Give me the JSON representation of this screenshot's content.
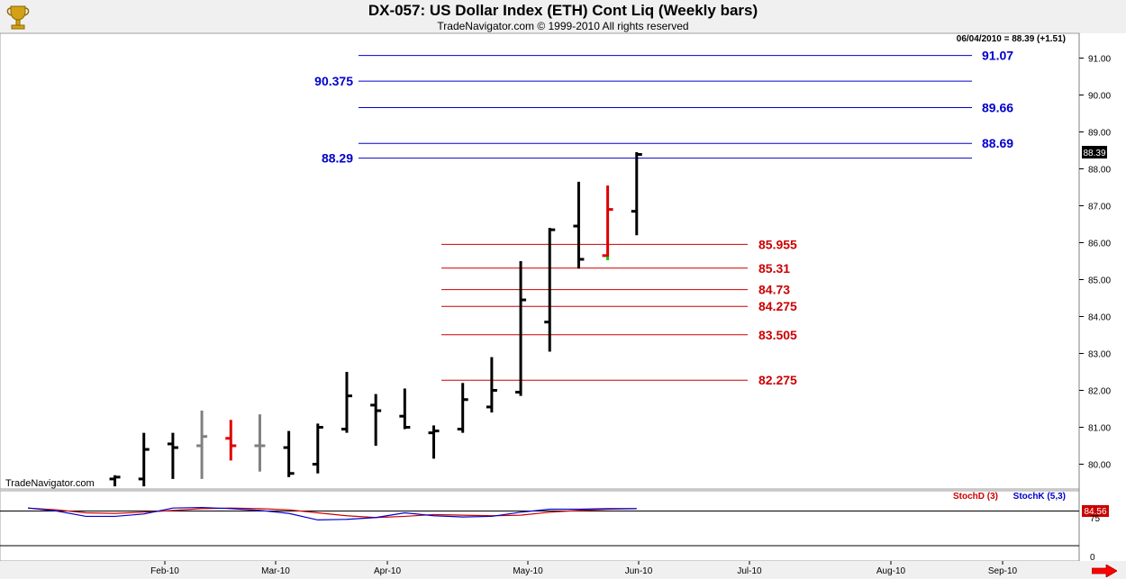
{
  "header": {
    "title": "DX-057:  US Dollar Index (ETH) Cont Liq  (Weekly bars)",
    "copyright": "TradeNavigator.com © 1999-2010 All rights reserved",
    "logo_icon": "trophy-icon"
  },
  "main_panel": {
    "last_price_readout": "06/04/2010 = 88.39 (+1.51)",
    "watermark": "TradeNavigator.com",
    "current_price_tag": "88.39",
    "y_ticks": [
      "80.00",
      "81.00",
      "82.00",
      "83.00",
      "84.00",
      "85.00",
      "86.00",
      "87.00",
      "88.00",
      "89.00",
      "90.00",
      "91.00"
    ]
  },
  "lower_panel": {
    "legend_d": "StochD (3)",
    "legend_k": "StochK (5,3)",
    "value_tag": "84.56",
    "y_ticks": [
      "75",
      "0"
    ]
  },
  "x_axis": {
    "labels": [
      "Feb-10",
      "Mar-10",
      "Apr-10",
      "May-10",
      "Jun-10",
      "Jul-10",
      "Aug-10",
      "Sep-10"
    ]
  },
  "colors": {
    "blue_levels": "#0000cc",
    "red_levels": "#cc0000",
    "bar_normal": "#000000",
    "bar_inside": "#808080",
    "bar_highlight": "#dd0000",
    "stoch_d": "#cc0000",
    "stoch_k": "#0000cc",
    "nav_arrow": "#ff0000"
  },
  "chart_data": [
    {
      "type": "ohlc",
      "ylim": [
        79.4,
        91.4
      ],
      "grid": false,
      "legend": "",
      "x": [
        "Jan-04",
        "Jan-11",
        "Jan-18",
        "Jan-25",
        "Feb-01",
        "Feb-08",
        "Feb-15",
        "Feb-22",
        "Mar-01",
        "Mar-08",
        "Mar-15",
        "Mar-22",
        "Mar-29",
        "Apr-05",
        "Apr-12",
        "Apr-19",
        "Apr-26",
        "May-03",
        "May-10",
        "May-17",
        "May-24",
        "May-31"
      ],
      "bars": [
        {
          "open": 79.6,
          "high": 79.7,
          "low": 79.4,
          "close": 79.65,
          "color": "black"
        },
        {
          "open": 79.6,
          "high": 80.85,
          "low": 79.4,
          "close": 80.4,
          "color": "black"
        },
        {
          "open": 80.55,
          "high": 80.85,
          "low": 79.6,
          "close": 80.45,
          "color": "black"
        },
        {
          "open": 80.5,
          "high": 81.45,
          "low": 79.6,
          "close": 80.75,
          "color": "gray"
        },
        {
          "open": 80.7,
          "high": 81.2,
          "low": 80.1,
          "close": 80.5,
          "color": "red"
        },
        {
          "open": 80.5,
          "high": 81.35,
          "low": 79.8,
          "close": 80.5,
          "color": "gray"
        },
        {
          "open": 80.45,
          "high": 80.9,
          "low": 79.65,
          "close": 79.75,
          "color": "black"
        },
        {
          "open": 80.0,
          "high": 81.1,
          "low": 79.75,
          "close": 81.0,
          "color": "black"
        },
        {
          "open": 80.95,
          "high": 82.5,
          "low": 80.85,
          "close": 81.85,
          "color": "black"
        },
        {
          "open": 81.6,
          "high": 81.9,
          "low": 80.5,
          "close": 81.45,
          "color": "black"
        },
        {
          "open": 81.3,
          "high": 82.05,
          "low": 80.95,
          "close": 81.0,
          "color": "black"
        },
        {
          "open": 80.85,
          "high": 81.05,
          "low": 80.15,
          "close": 80.9,
          "color": "black"
        },
        {
          "open": 80.95,
          "high": 82.2,
          "low": 80.85,
          "close": 81.75,
          "color": "black"
        },
        {
          "open": 81.55,
          "high": 82.9,
          "low": 81.4,
          "close": 82.0,
          "color": "black"
        },
        {
          "open": 81.95,
          "high": 85.5,
          "low": 81.85,
          "close": 84.45,
          "color": "black"
        },
        {
          "open": 83.85,
          "high": 86.4,
          "low": 83.05,
          "close": 86.35,
          "color": "black"
        },
        {
          "open": 86.45,
          "high": 87.65,
          "low": 85.3,
          "close": 85.55,
          "color": "black"
        },
        {
          "open": 85.65,
          "high": 87.55,
          "low": 85.6,
          "close": 86.9,
          "color": "red"
        },
        {
          "open": 86.85,
          "high": 88.45,
          "low": 86.2,
          "close": 88.39,
          "color": "black"
        }
      ],
      "bars_start_index": 3,
      "horizontal_levels": [
        {
          "value": 91.07,
          "label": "91.07",
          "color": "blue"
        },
        {
          "value": 90.375,
          "label": "90.375",
          "color": "blue"
        },
        {
          "value": 89.66,
          "label": "89.66",
          "color": "blue"
        },
        {
          "value": 88.69,
          "label": "88.69",
          "color": "blue"
        },
        {
          "value": 88.29,
          "label": "88.29",
          "color": "blue"
        },
        {
          "value": 85.955,
          "label": "85.955",
          "color": "red"
        },
        {
          "value": 85.31,
          "label": "85.31",
          "color": "red"
        },
        {
          "value": 84.73,
          "label": "84.73",
          "color": "red"
        },
        {
          "value": 84.275,
          "label": "84.275",
          "color": "red"
        },
        {
          "value": 83.505,
          "label": "83.505",
          "color": "red"
        },
        {
          "value": 82.275,
          "label": "82.275",
          "color": "red"
        }
      ]
    },
    {
      "type": "line",
      "ylim": [
        0,
        100
      ],
      "series": [
        {
          "name": "StochD (3)",
          "values": [
            80,
            77,
            72,
            71,
            73,
            76,
            79,
            80,
            79,
            77,
            72,
            67,
            64,
            66,
            69,
            68,
            67,
            68,
            73,
            76,
            78,
            79
          ]
        },
        {
          "name": "StochK (5,3)",
          "values": [
            80,
            75,
            66,
            66,
            70,
            80,
            81,
            79,
            76,
            71,
            60,
            61,
            64,
            72,
            67,
            65,
            66,
            73,
            78,
            78,
            79,
            79
          ]
        }
      ]
    }
  ]
}
